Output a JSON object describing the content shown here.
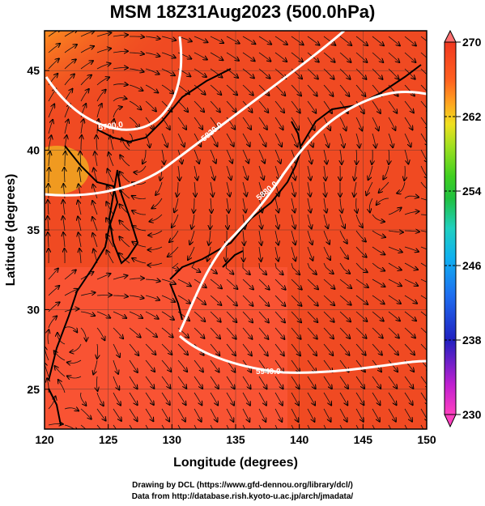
{
  "title": "MSM 18Z31Aug2023 (500.0hPa)",
  "xaxis": {
    "label": "Longitude (degrees)",
    "ticks": [
      "120",
      "125",
      "130",
      "135",
      "140",
      "145",
      "150"
    ],
    "range": [
      120,
      150
    ]
  },
  "yaxis": {
    "label": "Latitude  (degrees)",
    "ticks": [
      "25",
      "30",
      "35",
      "40",
      "45"
    ],
    "range": [
      22.5,
      47.5
    ]
  },
  "colorbar": {
    "ticks": [
      "270",
      "262",
      "254",
      "246",
      "238",
      "230"
    ],
    "range": [
      230,
      270
    ],
    "palette": [
      "#ff40c0",
      "#c020d0",
      "#2020c0",
      "#1e6ef0",
      "#10b0f0",
      "#20d0c0",
      "#20c040",
      "#40d020",
      "#a0e020",
      "#f0e020",
      "#ffa020",
      "#ff6020",
      "#f03820",
      "#ff7070"
    ]
  },
  "contours": [
    {
      "label": "5700.0",
      "value": 5700
    },
    {
      "label": "5820.0",
      "value": 5820
    },
    {
      "label": "5880.0",
      "value": 5880
    },
    {
      "label": "5940.0",
      "value": 5940
    }
  ],
  "credits": {
    "line1": "Drawing by DCL (https://www.gfd-dennou.org/library/dcl/)",
    "line2": "Data from http://database.rish.kyoto-u.ac.jp/arch/jmadata/"
  }
}
